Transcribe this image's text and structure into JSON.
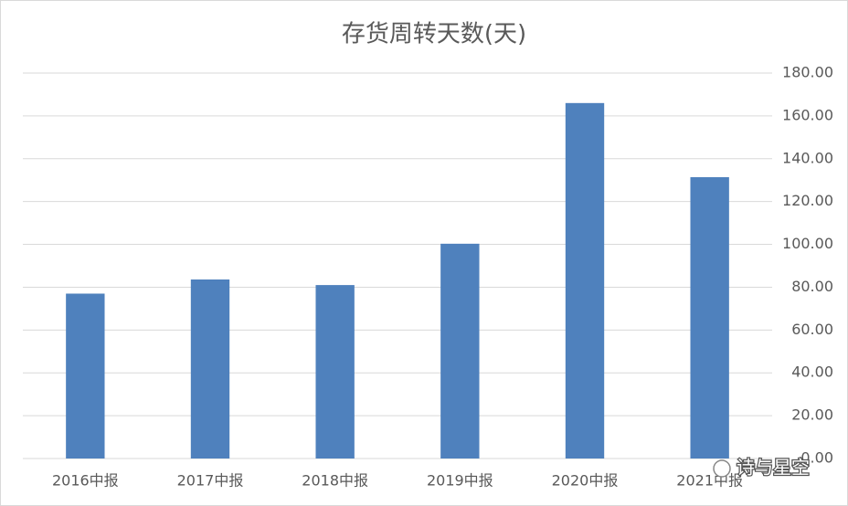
{
  "chart_data": {
    "type": "bar",
    "title": "存货周转天数(天)",
    "categories": [
      "2016中报",
      "2017中报",
      "2018中报",
      "2019中报",
      "2020中报",
      "2021中报"
    ],
    "values": [
      77,
      83.6,
      81,
      100.3,
      166,
      131.4
    ],
    "color": "#4f81bd",
    "ylim": [
      0,
      180
    ],
    "yticks": [
      {
        "value": 0,
        "label": "0.00"
      },
      {
        "value": 20,
        "label": "20.00"
      },
      {
        "value": 40,
        "label": "40.00"
      },
      {
        "value": 60,
        "label": "60.00"
      },
      {
        "value": 80,
        "label": "80.00"
      },
      {
        "value": 100,
        "label": "100.00"
      },
      {
        "value": 120,
        "label": "120.00"
      },
      {
        "value": 140,
        "label": "140.00"
      },
      {
        "value": 160,
        "label": "160.00"
      },
      {
        "value": 180,
        "label": "180.00"
      }
    ],
    "y_axis_side": "right",
    "grid": true
  },
  "watermark": "诗与星空"
}
